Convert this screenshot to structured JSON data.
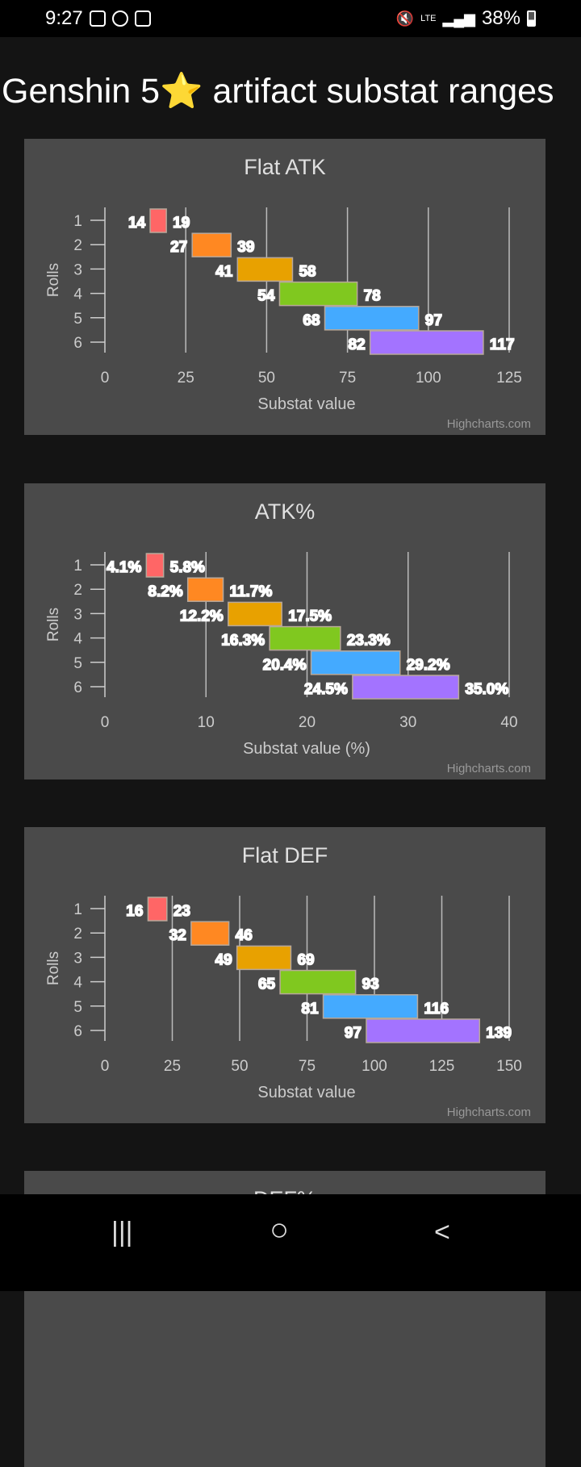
{
  "status_bar": {
    "time": "9:27",
    "battery": "38%",
    "network": "LTE",
    "icons": [
      "gallery-icon",
      "whatsapp-icon",
      "clock-app-icon",
      "mute-icon",
      "signal-icon",
      "battery-icon"
    ]
  },
  "page": {
    "title": "Genshin 5⭐ artifact substat ranges"
  },
  "chart_data": [
    {
      "type": "bar",
      "orientation": "horizontal-range",
      "title": "Flat ATK",
      "xlabel": "Substat value",
      "ylabel": "Rolls",
      "categories": [
        "1",
        "2",
        "3",
        "4",
        "5",
        "6"
      ],
      "xticks": [
        "0",
        "25",
        "50",
        "75",
        "100",
        "125"
      ],
      "xlim": [
        0,
        125
      ],
      "low": [
        14,
        27,
        41,
        54,
        68,
        82
      ],
      "high": [
        19,
        39,
        58,
        78,
        97,
        117
      ],
      "low_labels": [
        "14",
        "27",
        "41",
        "54",
        "68",
        "82"
      ],
      "high_labels": [
        "19",
        "39",
        "58",
        "78",
        "97",
        "117"
      ],
      "grid": true,
      "credit": "Highcharts.com"
    },
    {
      "type": "bar",
      "orientation": "horizontal-range",
      "title": "ATK%",
      "xlabel": "Substat value (%)",
      "ylabel": "Rolls",
      "categories": [
        "1",
        "2",
        "3",
        "4",
        "5",
        "6"
      ],
      "xticks": [
        "0",
        "10",
        "20",
        "30",
        "40"
      ],
      "xlim": [
        0,
        40
      ],
      "low": [
        4.1,
        8.2,
        12.2,
        16.3,
        20.4,
        24.5
      ],
      "high": [
        5.8,
        11.7,
        17.5,
        23.3,
        29.2,
        35.0
      ],
      "low_labels": [
        "4.1%",
        "8.2%",
        "12.2%",
        "16.3%",
        "20.4%",
        "24.5%"
      ],
      "high_labels": [
        "5.8%",
        "11.7%",
        "17.5%",
        "23.3%",
        "29.2%",
        "35.0%"
      ],
      "grid": true,
      "credit": "Highcharts.com"
    },
    {
      "type": "bar",
      "orientation": "horizontal-range",
      "title": "Flat DEF",
      "xlabel": "Substat value",
      "ylabel": "Rolls",
      "categories": [
        "1",
        "2",
        "3",
        "4",
        "5",
        "6"
      ],
      "xticks": [
        "0",
        "25",
        "50",
        "75",
        "100",
        "125",
        "150"
      ],
      "xlim": [
        0,
        150
      ],
      "low": [
        16,
        32,
        49,
        65,
        81,
        97
      ],
      "high": [
        23,
        46,
        69,
        93,
        116,
        139
      ],
      "low_labels": [
        "16",
        "32",
        "49",
        "65",
        "81",
        "97"
      ],
      "high_labels": [
        "23",
        "46",
        "69",
        "93",
        "116",
        "139"
      ],
      "grid": true,
      "credit": "Highcharts.com"
    },
    {
      "type": "bar",
      "title": "DEF%"
    }
  ],
  "colors": [
    "#ff6666",
    "#ff8822",
    "#e8a100",
    "#80c81f",
    "#44aaff",
    "#a373ff"
  ],
  "nav": {
    "recents": "|||",
    "home": "○",
    "back": "<"
  }
}
